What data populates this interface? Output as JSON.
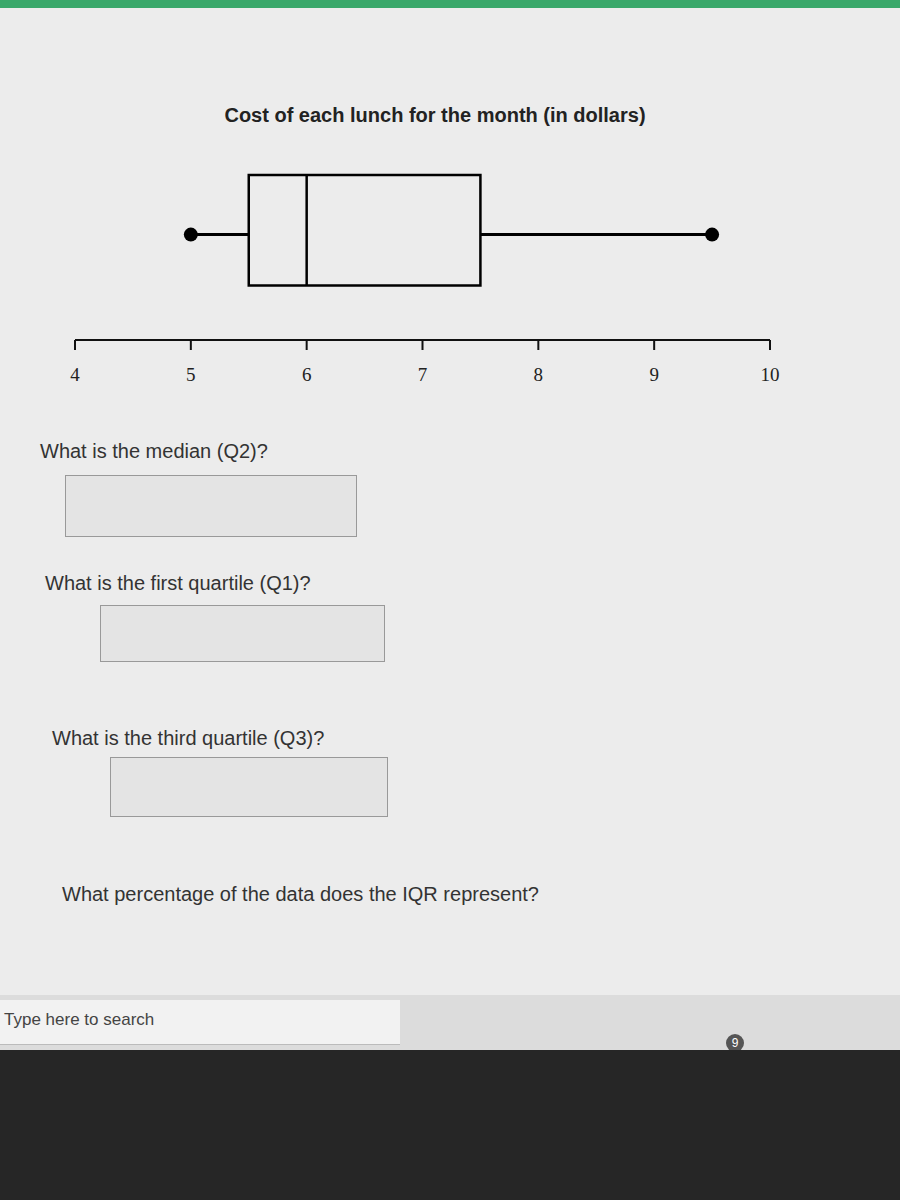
{
  "chart_data": {
    "type": "box",
    "title": "Cost of each lunch for the month (in dollars)",
    "min": 5,
    "q1": 5.5,
    "median": 6,
    "q3": 7.5,
    "max": 9.5,
    "xlim": [
      4,
      10
    ],
    "xticks": [
      4,
      5,
      6,
      7,
      8,
      9,
      10
    ],
    "color": "#000000"
  },
  "questions": [
    "What is the median (Q2)?",
    "What is the first quartile (Q1)?",
    "What is the third quartile (Q3)?",
    "What percentage of the data does the IQR represent?"
  ],
  "taskbar": {
    "search": "Type here to search",
    "badge": 9
  }
}
